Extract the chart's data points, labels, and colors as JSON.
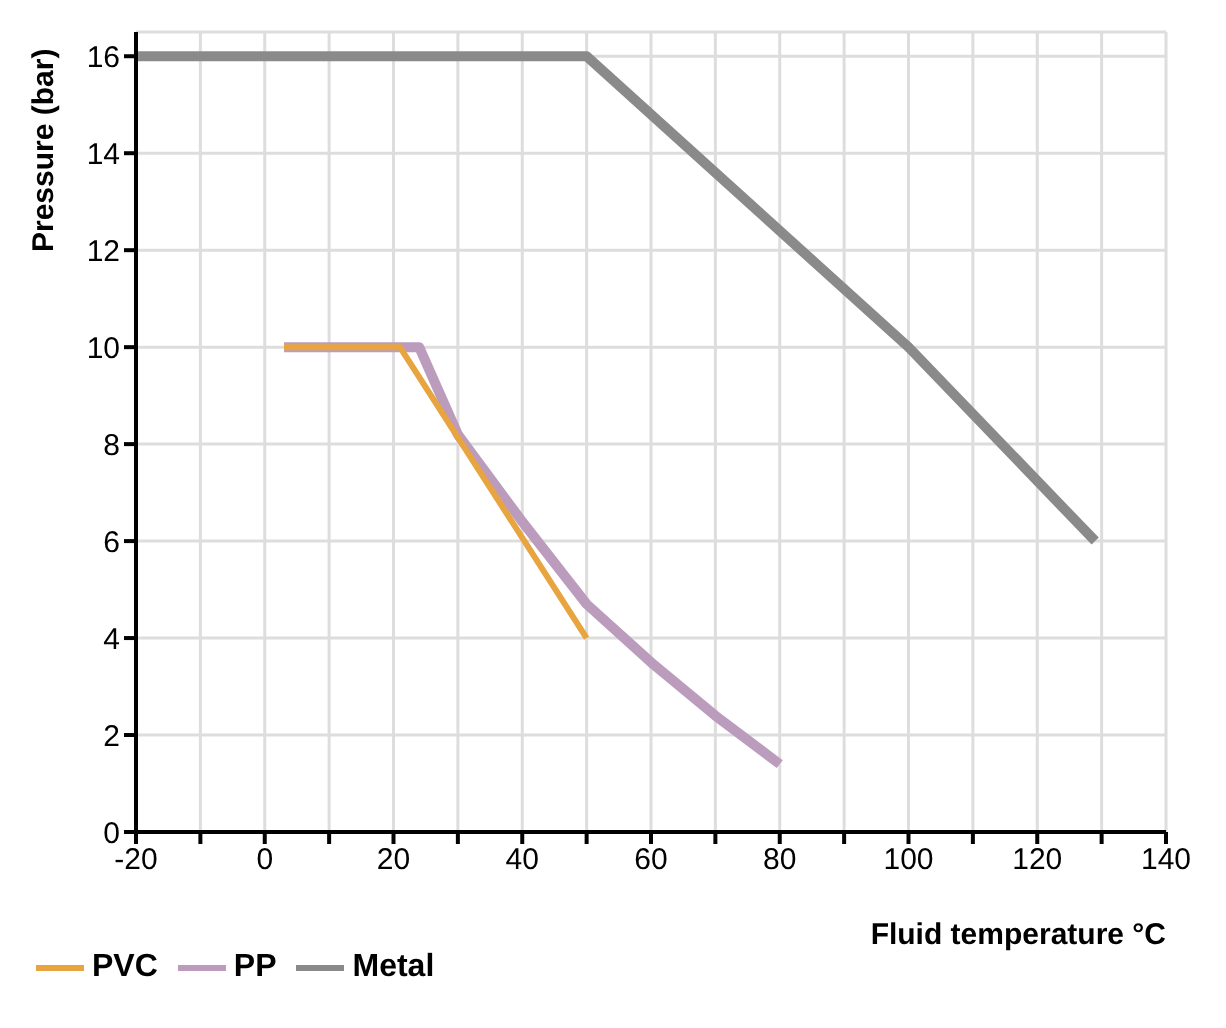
{
  "chart_data": {
    "type": "line",
    "xlabel": "Fluid temperature °C",
    "ylabel": "Pressure (bar)",
    "xlim": [
      -20,
      140
    ],
    "xticks": [
      -20,
      {
        "value": -10,
        "label": null
      },
      0,
      {
        "value": 10,
        "label": null
      },
      20,
      {
        "value": 30,
        "label": null
      },
      40,
      {
        "value": 50,
        "label": null
      },
      60,
      {
        "value": 70,
        "label": null
      },
      80,
      {
        "value": 90,
        "label": null
      },
      100,
      {
        "value": 110,
        "label": null
      },
      120,
      {
        "value": 130,
        "label": null
      },
      140
    ],
    "ylim": [
      0,
      16.5
    ],
    "yticks": [
      0,
      2,
      4,
      6,
      8,
      10,
      12,
      14,
      16
    ],
    "grid": true,
    "legend": "bottom left",
    "marker": "none",
    "line_style": "solid",
    "series": [
      {
        "name": "PVC",
        "color": "#e8a43f",
        "x": [
          3,
          21,
          50
        ],
        "values": [
          10,
          10,
          4
        ]
      },
      {
        "name": "PP",
        "color": "#bb9cbd",
        "x": [
          3,
          24,
          30,
          40,
          50,
          60,
          70,
          80
        ],
        "values": [
          10,
          10,
          8.2,
          6.4,
          4.7,
          3.5,
          2.4,
          1.4
        ]
      },
      {
        "name": "Metal",
        "color": "#8a8a8a",
        "x": [
          -20,
          50,
          100,
          129
        ],
        "values": [
          16,
          16,
          10,
          6
        ]
      }
    ]
  }
}
